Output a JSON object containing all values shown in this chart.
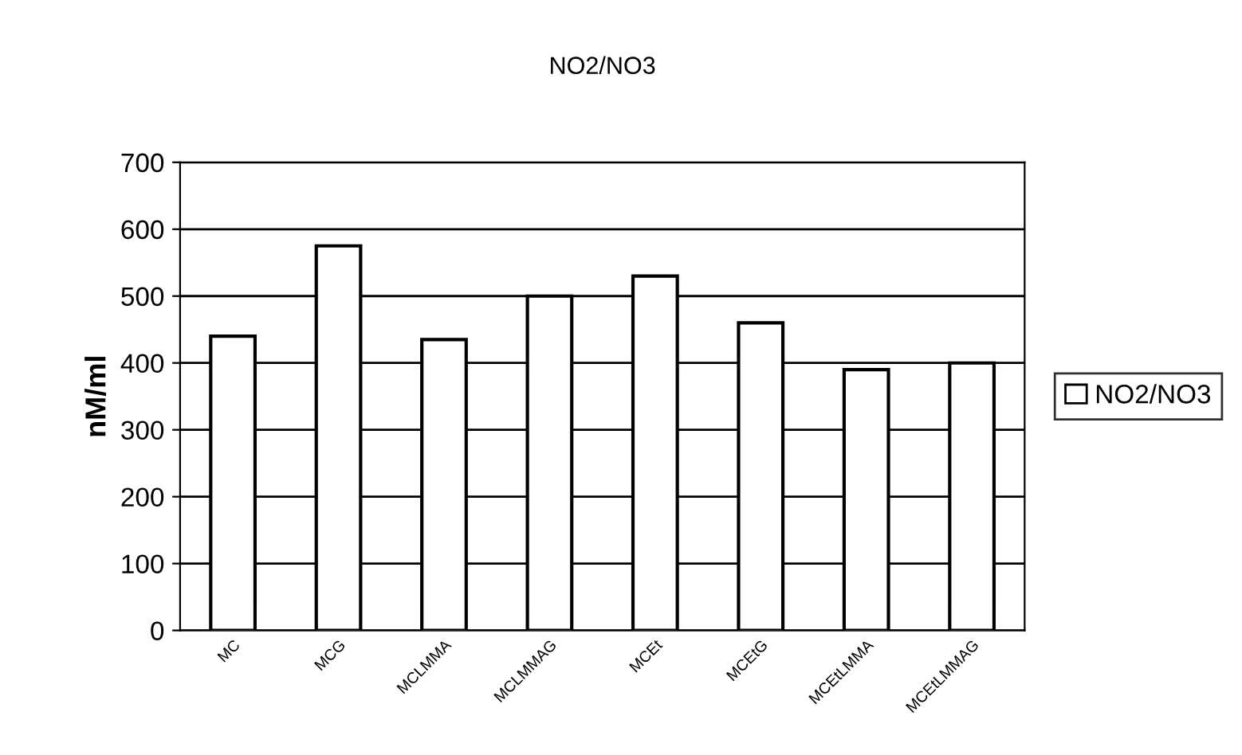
{
  "chart_data": {
    "type": "bar",
    "title": "NO2/NO3",
    "ylabel": "nM/ml",
    "categories": [
      "MC",
      "MCG",
      "MCLMMA",
      "MCLMMAG",
      "MCEt",
      "MCEtG",
      "MCEtLMMA",
      "MCEtLMMAG"
    ],
    "series": [
      {
        "name": "NO2/NO3",
        "color": "#ffffff",
        "values": [
          440,
          575,
          435,
          500,
          530,
          460,
          390,
          400
        ]
      }
    ],
    "ylim": [
      0,
      700
    ],
    "yticks": [
      0,
      100,
      200,
      300,
      400,
      500,
      600,
      700
    ],
    "grid": "y",
    "legend": "right"
  }
}
